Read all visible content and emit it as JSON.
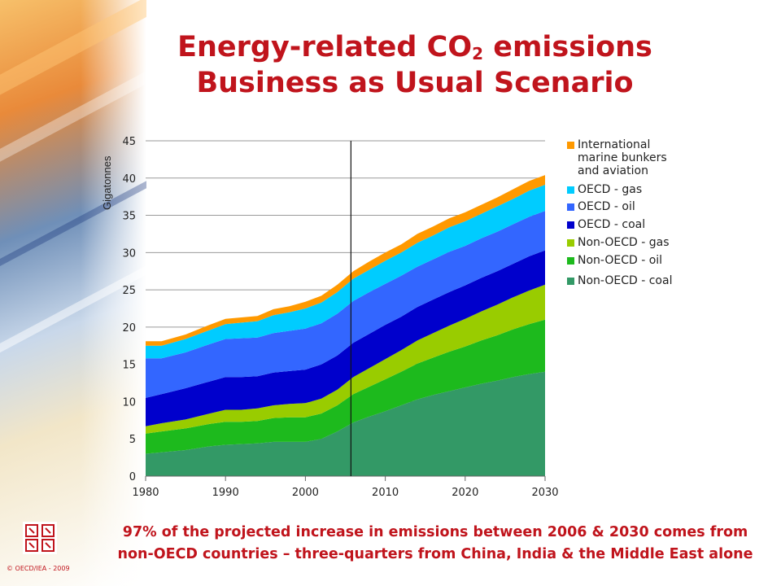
{
  "title": {
    "line1_prefix": "Energy-related CO",
    "line1_sub": "2",
    "line1_suffix": " emissions",
    "line2": "Business as Usual Scenario"
  },
  "footer": {
    "line1": "97% of the projected increase in emissions between 2006 & 2030 comes from",
    "line2": "non-OECD countries – three-quarters from China, India & the Middle East alone"
  },
  "copyright": "© OECD/IEA - 2009",
  "chart_data": {
    "type": "area",
    "stacked": true,
    "title": "Energy-related CO2 emissions Business as Usual Scenario",
    "ylabel": "Gigatonnes",
    "xlabel": "",
    "xlim": [
      1980,
      2030
    ],
    "ylim": [
      0,
      45
    ],
    "xticks": [
      1980,
      1990,
      2000,
      2010,
      2020,
      2030
    ],
    "yticks": [
      0,
      5,
      10,
      15,
      20,
      25,
      30,
      35,
      40,
      45
    ],
    "grid": "horizontal",
    "legend": "right",
    "annotation_vline_x": 2005.7,
    "x": [
      1980,
      1982,
      1985,
      1988,
      1990,
      1992,
      1994,
      1996,
      1998,
      2000,
      2002,
      2004,
      2006,
      2008,
      2010,
      2012,
      2014,
      2016,
      2018,
      2020,
      2022,
      2024,
      2026,
      2028,
      2030
    ],
    "series": [
      {
        "name": "Non-OECD - coal",
        "color": "#339966",
        "values": [
          3.0,
          3.2,
          3.5,
          4.0,
          4.2,
          4.3,
          4.4,
          4.6,
          4.6,
          4.6,
          5.0,
          6.0,
          7.2,
          8.0,
          8.7,
          9.5,
          10.3,
          10.9,
          11.4,
          11.9,
          12.4,
          12.8,
          13.3,
          13.7,
          14.0
        ]
      },
      {
        "name": "Non-OECD - oil",
        "color": "#1dba1d",
        "values": [
          2.7,
          2.8,
          2.9,
          3.0,
          3.1,
          3.0,
          3.0,
          3.2,
          3.3,
          3.3,
          3.4,
          3.5,
          3.8,
          4.0,
          4.3,
          4.5,
          4.8,
          5.0,
          5.3,
          5.5,
          5.8,
          6.1,
          6.4,
          6.7,
          7.0
        ]
      },
      {
        "name": "Non-OECD - gas",
        "color": "#99cc00",
        "values": [
          1.0,
          1.1,
          1.2,
          1.4,
          1.6,
          1.6,
          1.7,
          1.7,
          1.8,
          1.9,
          2.0,
          2.1,
          2.3,
          2.5,
          2.7,
          2.9,
          3.1,
          3.3,
          3.5,
          3.7,
          3.9,
          4.1,
          4.3,
          4.5,
          4.7
        ]
      },
      {
        "name": "OECD - coal",
        "color": "#0000cc",
        "values": [
          3.8,
          3.9,
          4.2,
          4.3,
          4.4,
          4.4,
          4.3,
          4.4,
          4.4,
          4.5,
          4.6,
          4.6,
          4.6,
          4.6,
          4.6,
          4.5,
          4.5,
          4.5,
          4.5,
          4.5,
          4.5,
          4.5,
          4.5,
          4.6,
          4.6
        ]
      },
      {
        "name": "OECD - oil",
        "color": "#3366ff",
        "values": [
          5.3,
          4.8,
          4.8,
          5.0,
          5.1,
          5.2,
          5.2,
          5.3,
          5.4,
          5.5,
          5.5,
          5.6,
          5.6,
          5.6,
          5.5,
          5.5,
          5.4,
          5.4,
          5.4,
          5.3,
          5.3,
          5.3,
          5.3,
          5.3,
          5.3
        ]
      },
      {
        "name": "OECD - gas",
        "color": "#00ccff",
        "values": [
          1.7,
          1.7,
          1.8,
          1.9,
          2.0,
          2.1,
          2.2,
          2.4,
          2.5,
          2.7,
          2.8,
          2.9,
          3.0,
          3.0,
          3.1,
          3.1,
          3.2,
          3.2,
          3.3,
          3.3,
          3.3,
          3.4,
          3.4,
          3.5,
          3.5
        ]
      },
      {
        "name": "International marine bunkers and aviation",
        "color": "#ff9900",
        "values": [
          0.6,
          0.6,
          0.6,
          0.7,
          0.7,
          0.7,
          0.7,
          0.8,
          0.8,
          0.9,
          0.9,
          1.0,
          1.0,
          1.1,
          1.1,
          1.1,
          1.2,
          1.2,
          1.2,
          1.2,
          1.2,
          1.2,
          1.3,
          1.3,
          1.3
        ]
      }
    ],
    "legend_order": [
      {
        "label_lines": [
          "International",
          "marine bunkers",
          "and aviation"
        ],
        "color": "#ff9900"
      },
      {
        "label_lines": [
          "OECD - gas"
        ],
        "color": "#00ccff"
      },
      {
        "label_lines": [
          "OECD - oil"
        ],
        "color": "#3366ff"
      },
      {
        "label_lines": [
          "OECD - coal"
        ],
        "color": "#0000cc"
      },
      {
        "label_lines": [
          "Non-OECD - gas"
        ],
        "color": "#99cc00"
      },
      {
        "label_lines": [
          "Non-OECD - oil"
        ],
        "color": "#1dba1d"
      },
      {
        "label_lines": [
          "Non-OECD - coal"
        ],
        "color": "#339966"
      }
    ]
  }
}
